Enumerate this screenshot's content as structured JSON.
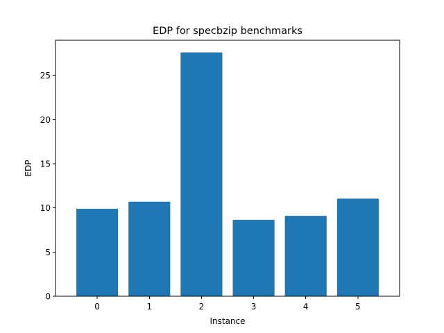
{
  "chart_data": {
    "type": "bar",
    "title": "EDP for specbzip benchmarks",
    "xlabel": "Instance",
    "ylabel": "EDP",
    "categories": [
      "0",
      "1",
      "2",
      "3",
      "4",
      "5"
    ],
    "values": [
      9.9,
      10.7,
      27.6,
      8.65,
      9.1,
      11.05
    ],
    "ylim": [
      0,
      28.98
    ],
    "yticks": [
      0,
      5,
      10,
      15,
      20,
      25
    ],
    "bar_color": "#1f77b4",
    "grid": false,
    "legend": "none"
  }
}
